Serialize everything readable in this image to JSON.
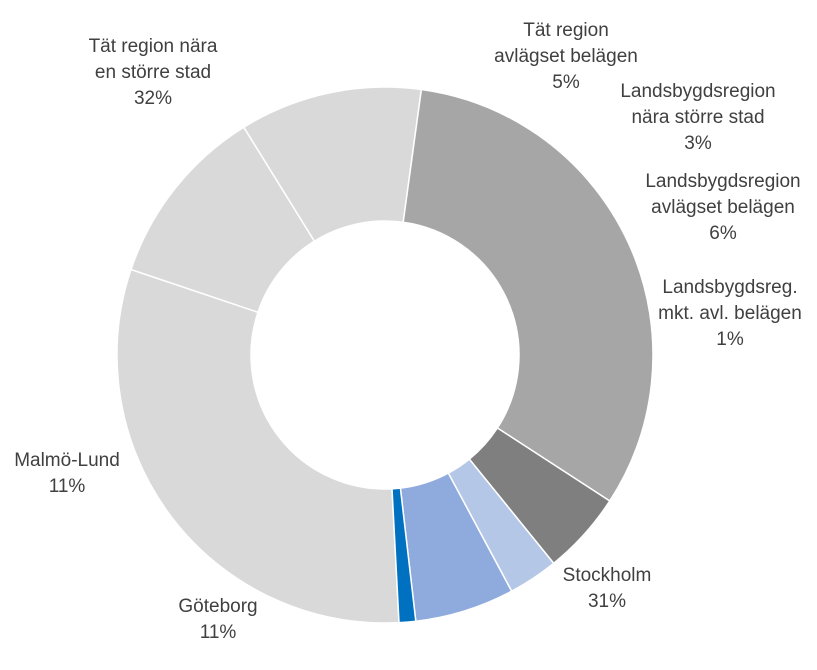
{
  "chart_data": {
    "type": "pie",
    "style": "donut",
    "title": "",
    "slices": [
      {
        "name": "Stockholm",
        "value": 31,
        "label_lines": [
          "Stockholm"
        ],
        "value_label": "31%",
        "color": "#d9d9d9"
      },
      {
        "name": "Göteborg",
        "value": 11,
        "label_lines": [
          "Göteborg"
        ],
        "value_label": "11%",
        "color": "#d9d9d9"
      },
      {
        "name": "Malmö-Lund",
        "value": 11,
        "label_lines": [
          "Malmö-Lund"
        ],
        "value_label": "11%",
        "color": "#d9d9d9"
      },
      {
        "name": "Tät region nära en större stad",
        "value": 32,
        "label_lines": [
          "Tät region nära",
          "en större stad"
        ],
        "value_label": "32%",
        "color": "#a6a6a6"
      },
      {
        "name": "Tät region avlägset belägen",
        "value": 5,
        "label_lines": [
          "Tät region",
          "avlägset belägen"
        ],
        "value_label": "5%",
        "color": "#7f7f7f"
      },
      {
        "name": "Landsbygdsregion nära större stad",
        "value": 3,
        "label_lines": [
          "Landsbygdsregion",
          "nära större stad"
        ],
        "value_label": "3%",
        "color": "#b4c7e7"
      },
      {
        "name": "Landsbygdsregion avlägset belägen",
        "value": 6,
        "label_lines": [
          "Landsbygdsregion",
          "avlägset belägen"
        ],
        "value_label": "6%",
        "color": "#8faadc"
      },
      {
        "name": "Landsbygdsreg. mkt. avl. belägen",
        "value": 1,
        "label_lines": [
          "Landsbygdsreg.",
          "mkt. avl. belägen"
        ],
        "value_label": "1%",
        "color": "#0070c0"
      }
    ]
  }
}
